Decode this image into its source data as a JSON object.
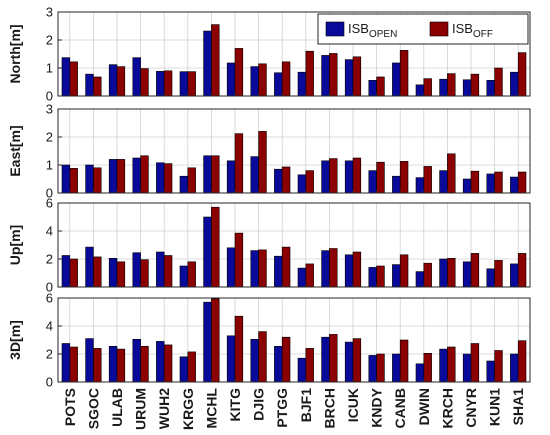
{
  "chart_data": {
    "type": "bar",
    "categories": [
      "POTS",
      "SGOC",
      "ULAB",
      "URUM",
      "WUH2",
      "KRGG",
      "MCHL",
      "KITG",
      "DJIG",
      "PTGG",
      "BJF1",
      "BRCH",
      "ICUK",
      "KNDY",
      "CANB",
      "DWIN",
      "KRCH",
      "CNYR",
      "KUN1",
      "SHA1"
    ],
    "colors": {
      "open": "#0a0a9a",
      "off": "#8b0000",
      "edge": "#000000"
    },
    "legend": {
      "position": "top-right",
      "open": {
        "base": "ISB",
        "sub": "OPEN"
      },
      "off": {
        "base": "ISB",
        "sub": "OFF"
      }
    },
    "grid": true,
    "panels": [
      {
        "ylabel": "North[m]",
        "ylim": [
          0,
          3
        ],
        "yticks": [
          "0",
          "1",
          "2",
          "3"
        ],
        "series": [
          {
            "name": "ISB_OPEN",
            "values": [
              1.37,
              0.78,
              1.12,
              1.37,
              0.88,
              0.87,
              2.32,
              1.18,
              1.05,
              0.83,
              0.85,
              1.45,
              1.3,
              0.56,
              1.18,
              0.4,
              0.6,
              0.58,
              0.56,
              0.85
            ]
          },
          {
            "name": "ISB_OFF",
            "values": [
              1.22,
              0.68,
              1.05,
              0.98,
              0.9,
              0.87,
              2.55,
              1.7,
              1.15,
              1.22,
              1.6,
              1.52,
              1.4,
              0.68,
              1.63,
              0.62,
              0.8,
              0.78,
              1.0,
              1.55
            ]
          }
        ]
      },
      {
        "ylabel": "East[m]",
        "ylim": [
          0,
          3
        ],
        "yticks": [
          "0",
          "1",
          "2",
          "3"
        ],
        "series": [
          {
            "name": "ISB_OPEN",
            "values": [
              1.0,
              1.0,
              1.2,
              1.25,
              1.08,
              0.6,
              1.33,
              1.15,
              1.3,
              0.85,
              0.65,
              1.15,
              1.15,
              0.8,
              0.6,
              0.55,
              0.8,
              0.5,
              0.68,
              0.57
            ]
          },
          {
            "name": "ISB_OFF",
            "values": [
              0.88,
              0.9,
              1.2,
              1.33,
              1.05,
              0.9,
              1.33,
              2.12,
              2.2,
              0.93,
              0.8,
              1.23,
              1.25,
              1.1,
              1.13,
              0.95,
              1.4,
              0.78,
              0.75,
              0.75
            ]
          }
        ]
      },
      {
        "ylabel": "Up[m]",
        "ylim": [
          0,
          6
        ],
        "yticks": [
          "0",
          "2",
          "4",
          "6"
        ],
        "series": [
          {
            "name": "ISB_OPEN",
            "values": [
              2.25,
              2.85,
              2.05,
              2.45,
              2.5,
              1.5,
              5.0,
              2.8,
              2.6,
              2.2,
              1.35,
              2.6,
              2.3,
              1.4,
              1.6,
              1.1,
              2.0,
              1.8,
              1.3,
              1.65
            ]
          },
          {
            "name": "ISB_OFF",
            "values": [
              2.0,
              2.15,
              1.8,
              1.95,
              2.25,
              1.8,
              5.7,
              3.85,
              2.65,
              2.85,
              1.65,
              2.75,
              2.5,
              1.5,
              2.3,
              1.7,
              2.05,
              2.4,
              1.9,
              2.4
            ]
          }
        ]
      },
      {
        "ylabel": "3D[m]",
        "ylim": [
          0,
          6
        ],
        "yticks": [
          "0",
          "2",
          "4",
          "6"
        ],
        "series": [
          {
            "name": "ISB_OPEN",
            "values": [
              2.75,
              3.1,
              2.55,
              3.05,
              2.9,
              1.8,
              5.7,
              3.3,
              3.05,
              2.55,
              1.7,
              3.2,
              2.85,
              1.9,
              2.0,
              1.3,
              2.35,
              2.0,
              1.5,
              2.0
            ]
          },
          {
            "name": "ISB_OFF",
            "values": [
              2.5,
              2.4,
              2.35,
              2.55,
              2.65,
              2.15,
              5.95,
              4.7,
              3.6,
              3.2,
              2.4,
              3.4,
              3.1,
              2.0,
              3.0,
              2.05,
              2.5,
              2.75,
              2.25,
              2.95
            ]
          }
        ]
      }
    ]
  }
}
